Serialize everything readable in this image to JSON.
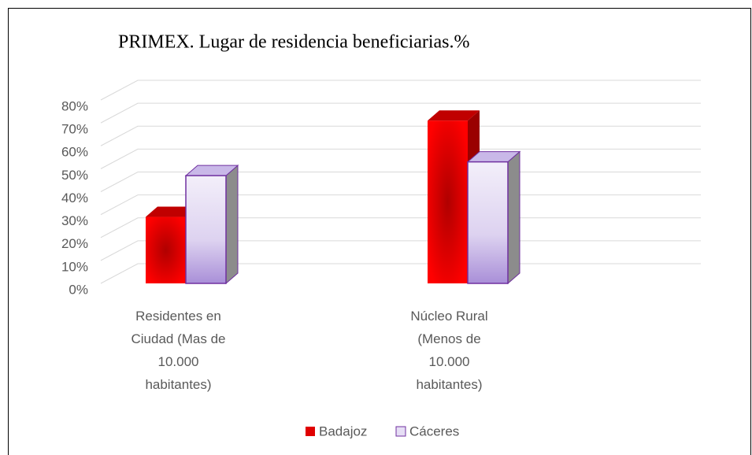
{
  "chart_data": {
    "type": "bar3d",
    "title": "PRIMEX. Lugar de residencia beneficiarias.%",
    "categories": [
      "Residentes en Ciudad (Mas de 10.000 habitantes)",
      "Núcleo Rural (Menos de 10.000 habitantes)"
    ],
    "series": [
      {
        "name": "Badajoz",
        "color": "#e00000",
        "values": [
          29,
          71
        ]
      },
      {
        "name": "Cáceres",
        "color": "#e6def5",
        "values": [
          47,
          53
        ]
      }
    ],
    "ylim": [
      0,
      80
    ],
    "yticks": [
      {
        "value": 0,
        "label": "0%"
      },
      {
        "value": 10,
        "label": "10%"
      },
      {
        "value": 20,
        "label": "20%"
      },
      {
        "value": 30,
        "label": "30%"
      },
      {
        "value": 40,
        "label": "40%"
      },
      {
        "value": 50,
        "label": "50%"
      },
      {
        "value": 60,
        "label": "60%"
      },
      {
        "value": 70,
        "label": "70%"
      },
      {
        "value": 80,
        "label": "80%"
      }
    ],
    "grid": true,
    "legend": "bottom"
  }
}
